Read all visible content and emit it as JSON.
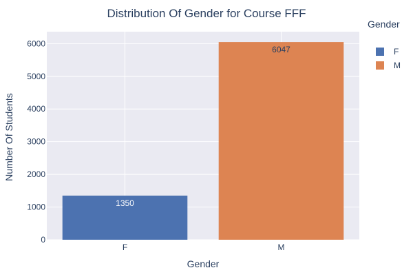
{
  "chart_data": {
    "type": "bar",
    "title": "Distribution Of Gender for Course FFF",
    "xlabel": "Gender",
    "ylabel": "Number Of Students",
    "categories": [
      "F",
      "M"
    ],
    "values": [
      1350,
      6047
    ],
    "ylim": [
      0,
      6365
    ],
    "yticks": [
      0,
      1000,
      2000,
      3000,
      4000,
      5000,
      6000
    ],
    "grid": true,
    "legend": {
      "title": "Gender",
      "position": "right",
      "entries": [
        "F",
        "M"
      ]
    },
    "colors": {
      "F": "#4c72b0",
      "M": "#dd8452",
      "plot_background": "#eaeaf2",
      "grid": "#ffffff",
      "text": "#2a3f5f"
    },
    "data_labels": [
      "1350",
      "6047"
    ],
    "data_label_colors": [
      "#ffffff",
      "#2a3f5f"
    ]
  }
}
